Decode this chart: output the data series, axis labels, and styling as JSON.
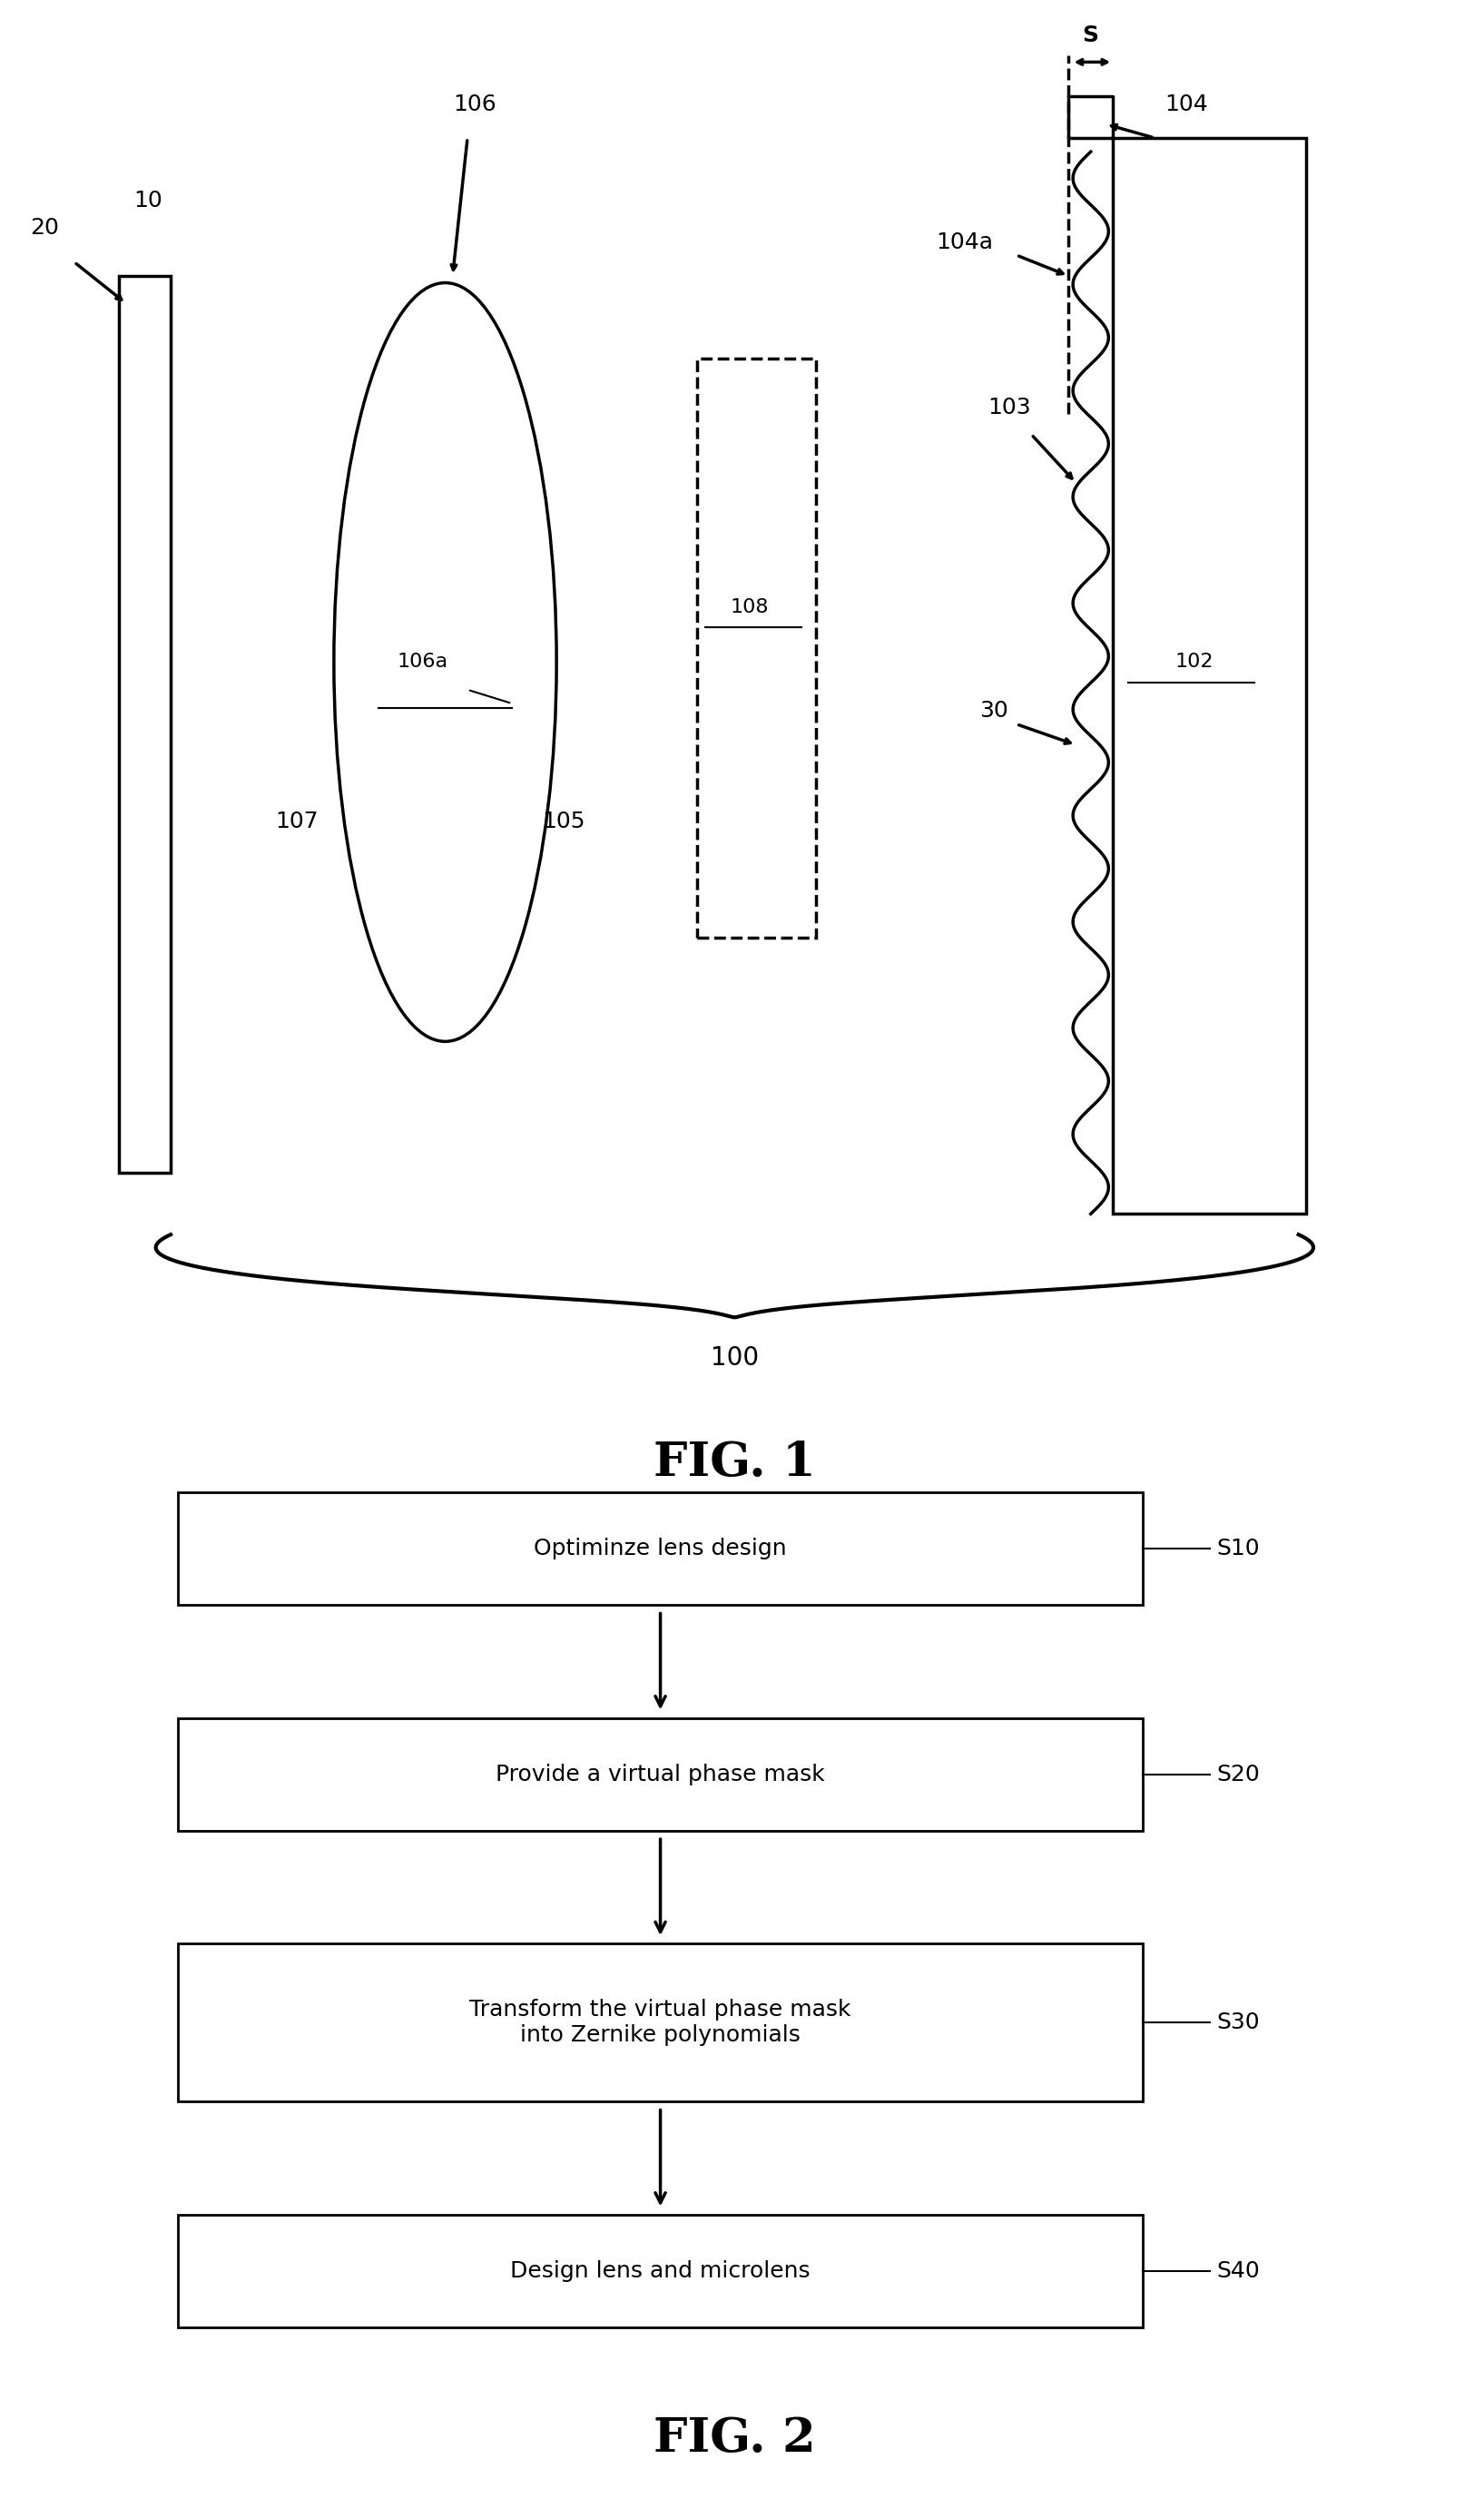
{
  "fig_width": 16.35,
  "fig_height": 27.63,
  "bg_color": "#ffffff",
  "fig1_title": "FIG. 1",
  "fig2_title": "FIG. 2",
  "flowchart_steps": [
    "Optiminze lens design",
    "Provide a virtual phase mask",
    "Transform the virtual phase mask\ninto Zernike polynomials",
    "Design lens and microlens"
  ],
  "flowchart_labels": [
    "S10",
    "S20",
    "S30",
    "S40"
  ]
}
